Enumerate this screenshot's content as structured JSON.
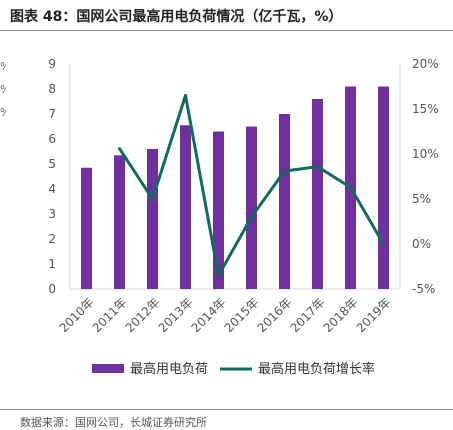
{
  "header": {
    "title": "图表 48：国网公司最高用电负荷情况（亿千瓦，%）"
  },
  "footer": {
    "source": "数据来源：国网公司，长城证券研究所"
  },
  "colors": {
    "bar": "#7030A0",
    "line": "#0F6B5C",
    "axis": "#D9D9D9",
    "rule": "#8A8A8A"
  },
  "chart_data": {
    "type": "bar",
    "categories": [
      "2010年",
      "2011年",
      "2012年",
      "2013年",
      "2014年",
      "2015年",
      "2016年",
      "2017年",
      "2018年",
      "2019年"
    ],
    "ylim": [
      0,
      9
    ],
    "y2lim": [
      -5,
      20
    ],
    "y_ticks": [
      "0",
      "1",
      "2",
      "3",
      "4",
      "5",
      "6",
      "7",
      "8",
      "9"
    ],
    "y2_ticks": [
      "-5%",
      "0%",
      "5%",
      "10%",
      "15%",
      "20%"
    ],
    "grid": false,
    "legend_position": "bottom",
    "series": [
      {
        "name": "最高用电负荷",
        "type": "bar",
        "axis": "left",
        "values": [
          4.85,
          5.35,
          5.6,
          6.55,
          6.3,
          6.5,
          7.0,
          7.6,
          8.1,
          8.1
        ]
      },
      {
        "name": "最高用电负荷增长率",
        "type": "line",
        "axis": "right",
        "values": [
          null,
          10.6,
          5.0,
          16.5,
          -3.5,
          3.0,
          8.1,
          8.6,
          6.3,
          0.0
        ]
      }
    ]
  }
}
